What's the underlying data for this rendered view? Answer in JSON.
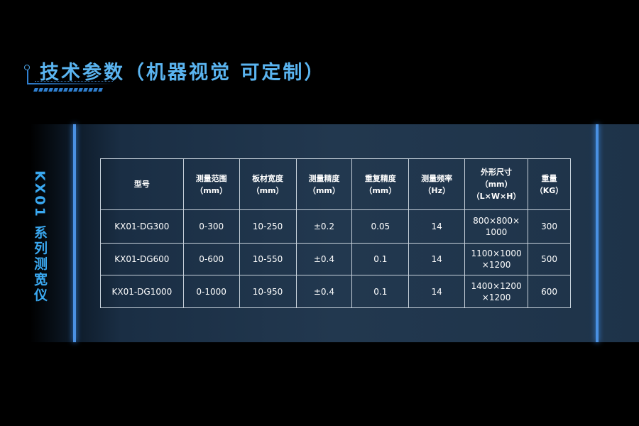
{
  "title": "技术参数（机器视觉 可定制）",
  "side_label": "KX01 系列测宽仪",
  "accent_color": "#5ab4f0",
  "table": {
    "headers": [
      [
        "型号"
      ],
      [
        "测量范围",
        "（mm）"
      ],
      [
        "板材宽度",
        "（mm）"
      ],
      [
        "测量精度",
        "（mm）"
      ],
      [
        "重复精度",
        "（mm）"
      ],
      [
        "测量频率",
        "（Hz）"
      ],
      [
        "外形尺寸",
        "（mm）",
        "（L×W×H）"
      ],
      [
        "重量",
        "（KG）"
      ]
    ],
    "rows": [
      [
        [
          "KX01-DG300"
        ],
        [
          "0-300"
        ],
        [
          "10-250"
        ],
        [
          "±0.2"
        ],
        [
          "0.05"
        ],
        [
          "14"
        ],
        [
          "800×800×",
          "1000"
        ],
        [
          "300"
        ]
      ],
      [
        [
          "KX01-DG600"
        ],
        [
          "0-600"
        ],
        [
          "10-550"
        ],
        [
          "±0.4"
        ],
        [
          "0.1"
        ],
        [
          "14"
        ],
        [
          "1100×1000",
          "×1200"
        ],
        [
          "500"
        ]
      ],
      [
        [
          "KX01-DG1000"
        ],
        [
          "0-1000"
        ],
        [
          "10-950"
        ],
        [
          "±0.4"
        ],
        [
          "0.1"
        ],
        [
          "14"
        ],
        [
          "1400×1200",
          "×1200"
        ],
        [
          "600"
        ]
      ]
    ]
  }
}
